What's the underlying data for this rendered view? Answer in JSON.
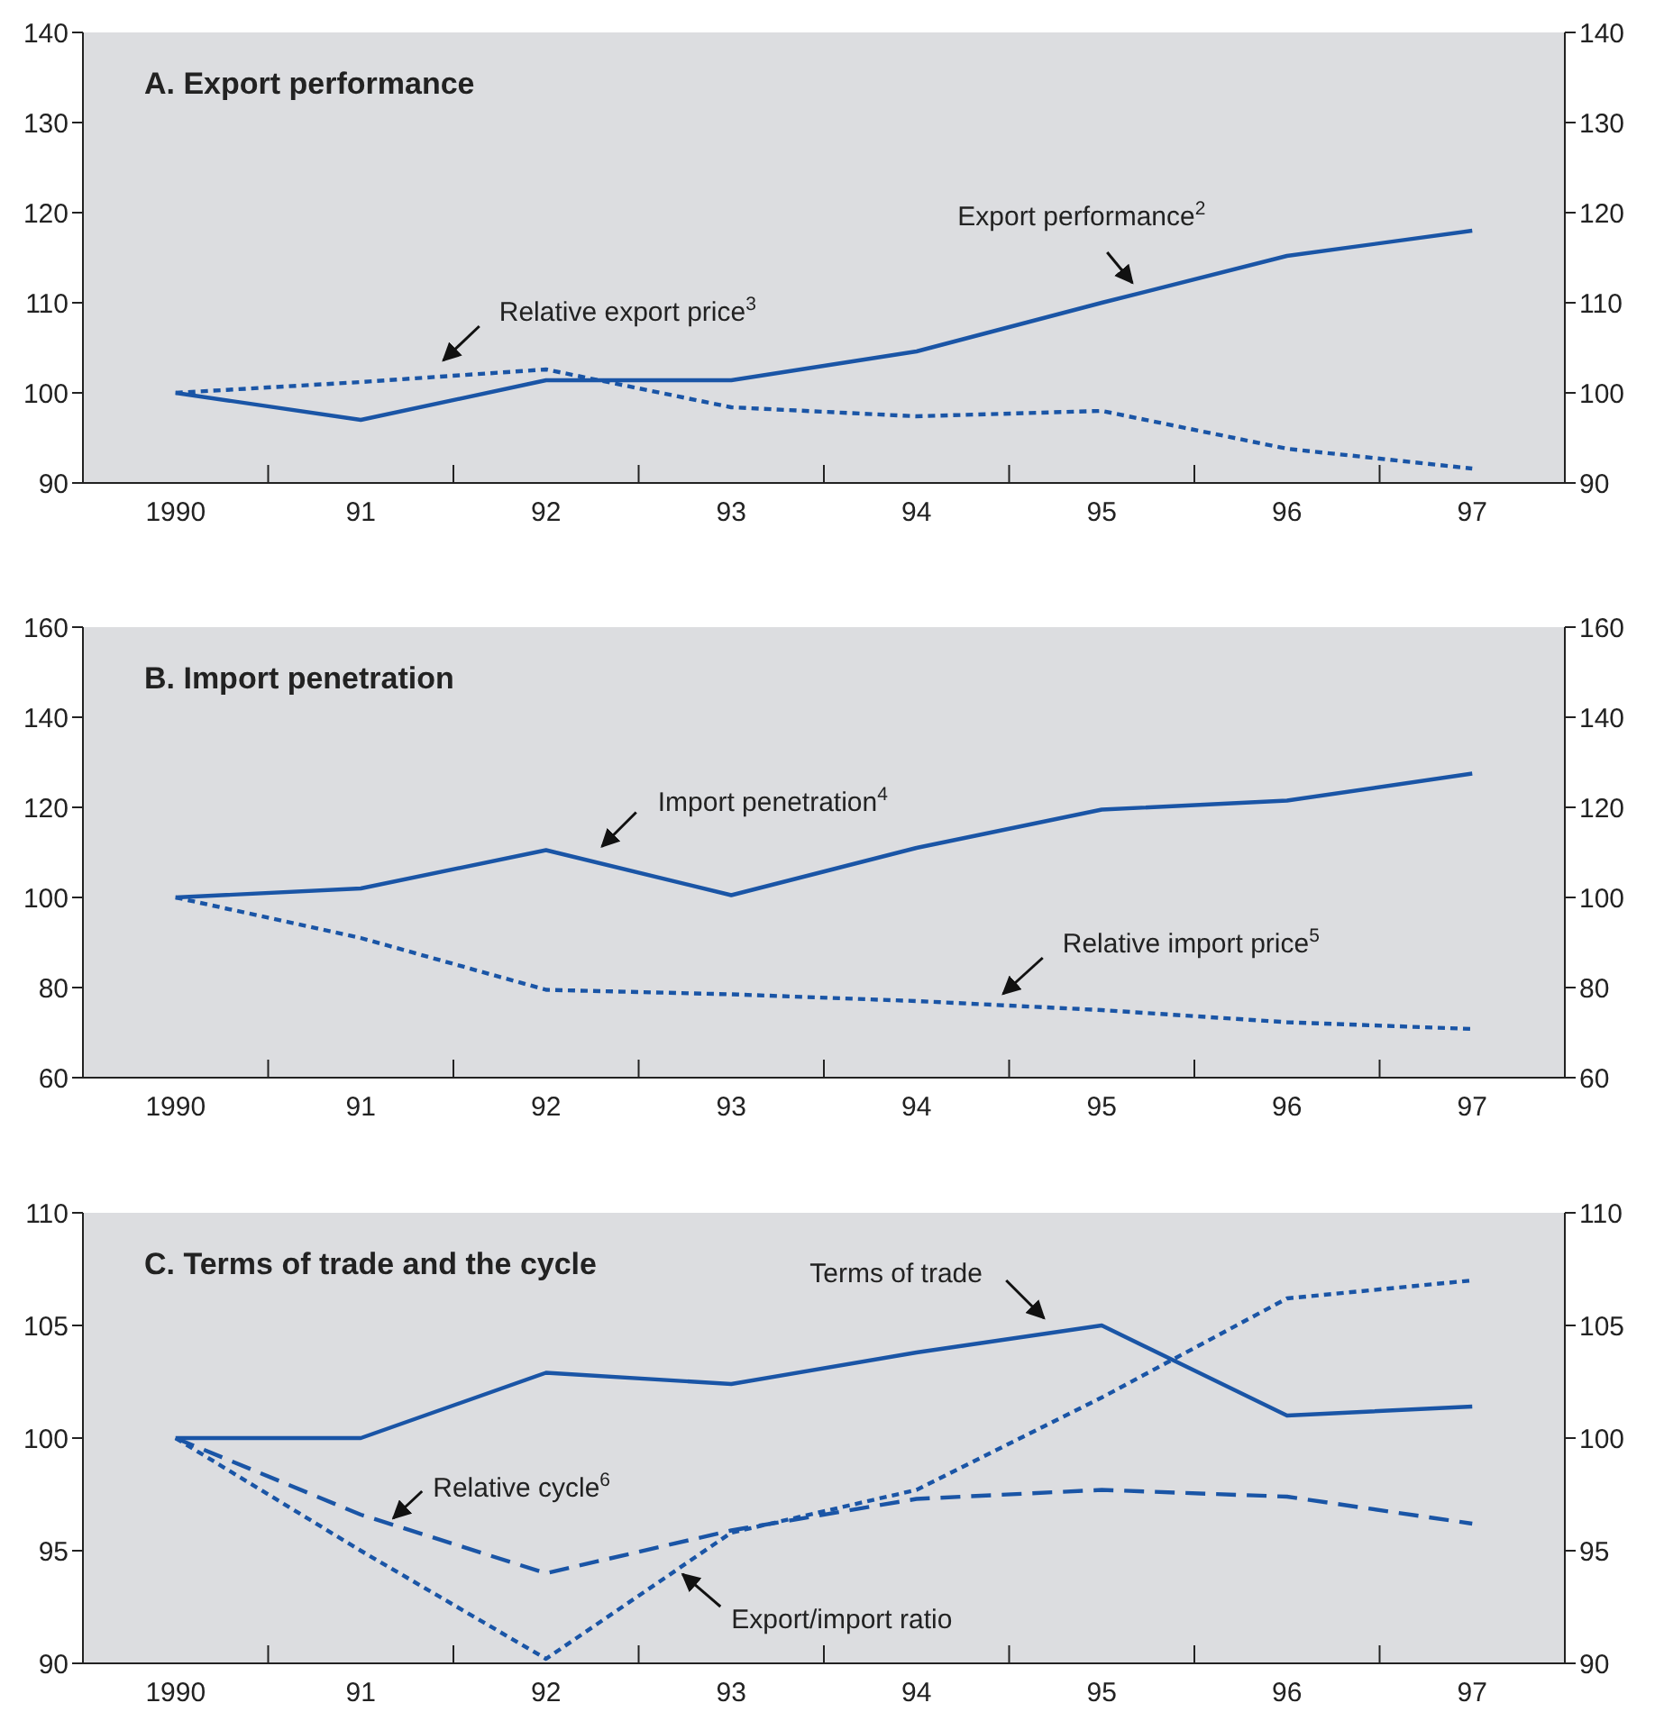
{
  "chart_data": [
    {
      "type": "line",
      "title": "A.   Export performance",
      "categories": [
        "1990",
        "91",
        "92",
        "93",
        "94",
        "95",
        "96",
        "97"
      ],
      "series": [
        {
          "name": "Export performance$^{2}$",
          "color": "#1a55a6",
          "line_style": "solid",
          "values": [
            100,
            97,
            101.4,
            101.4,
            104.6,
            110,
            115.2,
            118
          ]
        },
        {
          "name": "Relative export price$^{3}$",
          "color": "#1a55a6",
          "line_style": "dotted",
          "values": [
            100,
            101.2,
            102.6,
            98.4,
            97.4,
            98,
            93.8,
            91.6
          ]
        }
      ],
      "ylim": [
        90,
        140
      ],
      "yticks": [
        90,
        100,
        110,
        120,
        130,
        140
      ],
      "y2lim": [
        90,
        140
      ],
      "y2ticks": [
        90,
        100,
        110,
        120,
        130,
        140
      ],
      "grid": false,
      "legend": false,
      "marker": "none"
    },
    {
      "type": "line",
      "title": "B.   Import penetration",
      "categories": [
        "1990",
        "91",
        "92",
        "93",
        "94",
        "95",
        "96",
        "97"
      ],
      "series": [
        {
          "name": "Import penetration$^{4}$",
          "color": "#1a55a6",
          "line_style": "solid",
          "values": [
            100,
            102,
            110.5,
            100.5,
            111,
            119.5,
            121.5,
            127.5
          ]
        },
        {
          "name": "Relative import price$^{5}$",
          "color": "#1a55a6",
          "line_style": "dotted",
          "values": [
            100,
            91,
            79.5,
            78.5,
            77,
            75,
            72.3,
            70.8
          ]
        }
      ],
      "ylim": [
        60,
        160
      ],
      "yticks": [
        60,
        80,
        100,
        120,
        140,
        160
      ],
      "y2lim": [
        60,
        160
      ],
      "y2ticks": [
        60,
        80,
        100,
        120,
        140,
        160
      ],
      "grid": false,
      "legend": false,
      "marker": "none"
    },
    {
      "type": "line",
      "title": "C.   Terms of trade and the cycle",
      "categories": [
        "1990",
        "91",
        "92",
        "93",
        "94",
        "95",
        "96",
        "97"
      ],
      "series": [
        {
          "name": "Terms of trade",
          "color": "#1a55a6",
          "line_style": "solid",
          "values": [
            100,
            100,
            102.9,
            102.4,
            103.8,
            105,
            101,
            101.4
          ]
        },
        {
          "name": "Relative cycle$^{6}$",
          "color": "#1a55a6",
          "line_style": "dashed",
          "values": [
            100,
            96.6,
            94,
            95.9,
            97.3,
            97.7,
            97.4,
            96.2
          ]
        },
        {
          "name": "Export/import ratio",
          "color": "#1a55a6",
          "line_style": "dotted",
          "values": [
            100,
            95,
            90.2,
            95.8,
            97.7,
            101.8,
            106.2,
            107
          ]
        }
      ],
      "ylim": [
        90,
        110
      ],
      "yticks": [
        90,
        95,
        100,
        105,
        110
      ],
      "y2lim": [
        90,
        110
      ],
      "y2ticks": [
        90,
        95,
        100,
        105,
        110
      ],
      "grid": false,
      "legend": false,
      "marker": "none"
    }
  ]
}
